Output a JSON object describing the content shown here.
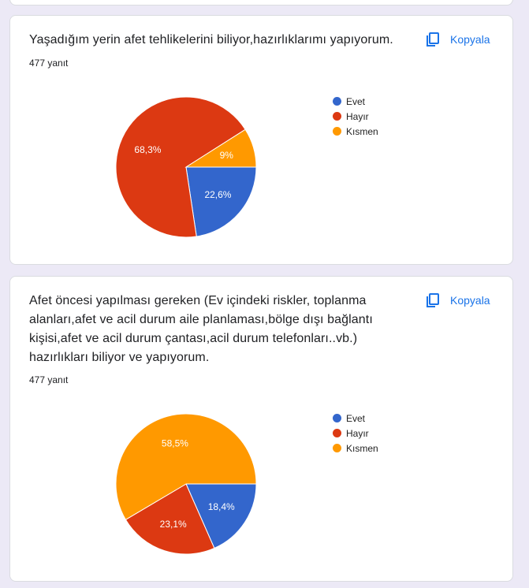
{
  "questions": [
    {
      "title": "Yaşadığım yerin afet tehlikelerini biliyor,hazırlıklarımı yapıyorum.",
      "response_count": "477 yanıt",
      "copy_label": "Kopyala"
    },
    {
      "title": "Afet öncesi yapılması gereken (Ev içindeki riskler, toplanma alanları,afet ve acil durum aile planlaması,bölge dışı bağlantı kişisi,afet ve acil durum çantası,acil durum telefonları..vb.) hazırlıkları biliyor ve yapıyorum.",
      "response_count": "477 yanıt",
      "copy_label": "Kopyala"
    }
  ],
  "legend": [
    {
      "label": "Evet",
      "color": "#3366cc"
    },
    {
      "label": "Hayır",
      "color": "#dc3912"
    },
    {
      "label": "Kısmen",
      "color": "#ff9900"
    }
  ],
  "chart_data": [
    {
      "type": "pie",
      "title": "Yaşadığım yerin afet tehlikelerini biliyor,hazırlıklarımı yapıyorum.",
      "categories": [
        "Evet",
        "Hayır",
        "Kısmen"
      ],
      "values": [
        22.6,
        68.3,
        9.0
      ],
      "labels": [
        "22,6%",
        "68,3%",
        "9%"
      ],
      "colors": [
        "#3366cc",
        "#dc3912",
        "#ff9900"
      ],
      "total_responses": 477,
      "legend_position": "right"
    },
    {
      "type": "pie",
      "title": "Afet öncesi yapılması gereken (...) hazırlıkları biliyor ve yapıyorum.",
      "categories": [
        "Evet",
        "Hayır",
        "Kısmen"
      ],
      "values": [
        18.4,
        23.1,
        58.5
      ],
      "labels": [
        "18,4%",
        "23,1%",
        "58,5%"
      ],
      "colors": [
        "#3366cc",
        "#dc3912",
        "#ff9900"
      ],
      "total_responses": 477,
      "legend_position": "right"
    }
  ]
}
